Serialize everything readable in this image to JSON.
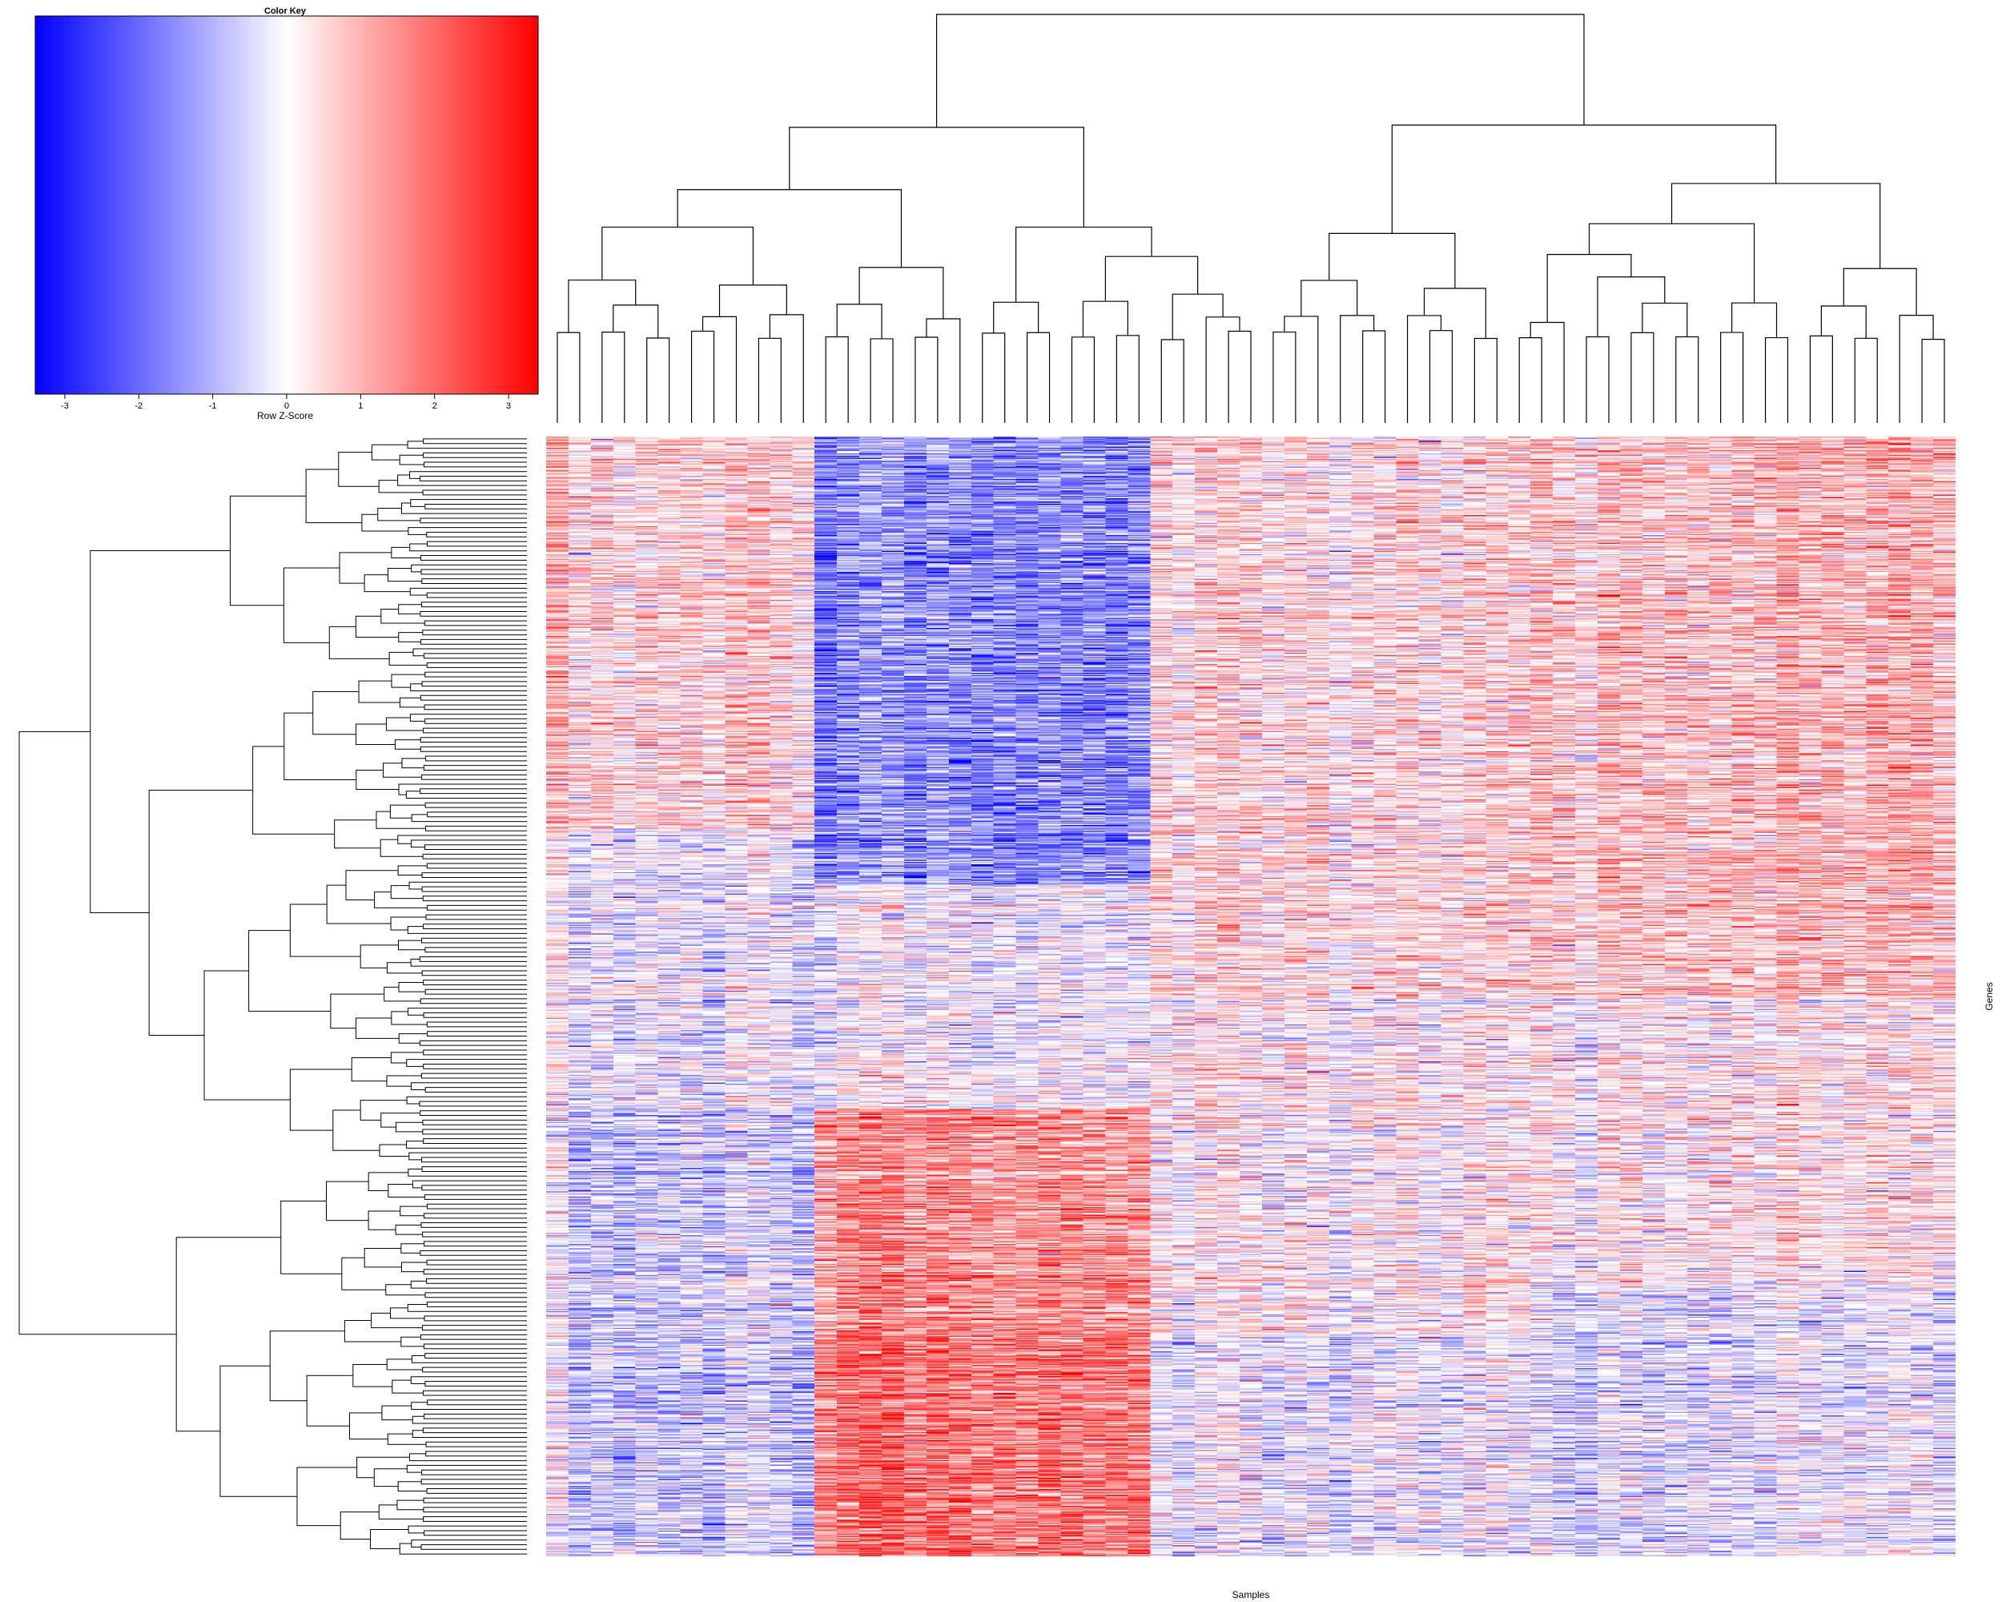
{
  "chart_data": {
    "type": "heatmap",
    "title": "",
    "xlabel": "Samples",
    "ylabel": "Genes",
    "color_key": {
      "title": "Color Key",
      "label": "Row Z-Score",
      "range": [
        -3.4,
        3.4
      ],
      "ticks": [
        -3,
        -2,
        -1,
        0,
        1,
        2,
        3
      ],
      "tick_labels": [
        "-3",
        "-2",
        "-1",
        "0",
        "1",
        "2",
        "3"
      ],
      "colors": {
        "low": "#0000ff",
        "mid": "#ffffff",
        "high": "#ff0000"
      }
    },
    "n_samples": 63,
    "n_genes": 1000,
    "column_dendrogram": true,
    "row_dendrogram": true,
    "sample_cluster_profile": [
      {
        "cluster": "samples 1-12",
        "upper_genes": "mostly positive (red)",
        "lower_genes": "mostly negative (blue)"
      },
      {
        "cluster": "samples 13-27",
        "upper_genes": "strongly negative (blue)",
        "lower_genes": "strongly positive (red)"
      },
      {
        "cluster": "samples 28-44",
        "upper_genes": "mixed / mildly positive",
        "lower_genes": "mixed"
      },
      {
        "cluster": "samples 45-63",
        "upper_genes": "positive (red)",
        "lower_genes": "mixed, mildly negative"
      }
    ]
  }
}
